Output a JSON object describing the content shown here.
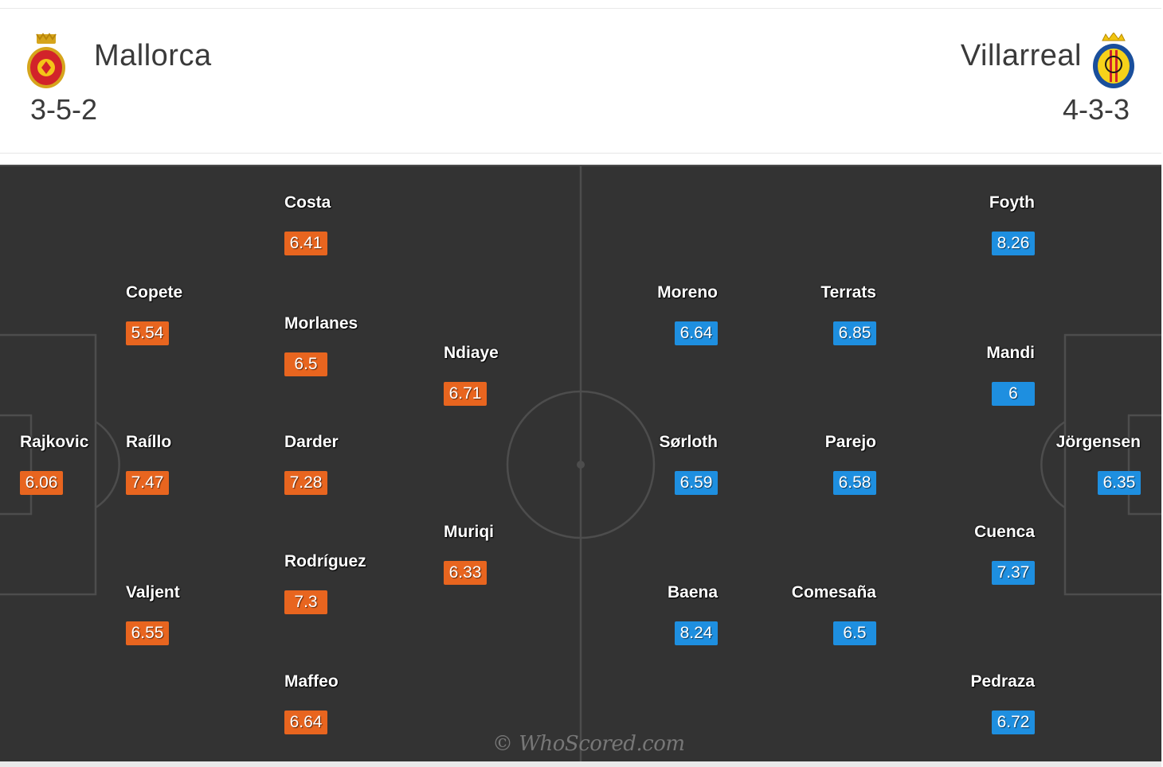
{
  "home": {
    "name": "Mallorca",
    "formation": "3-5-2",
    "badge_color": "#e8651f",
    "crest_icon": "mallorca-crest-icon",
    "players": [
      {
        "name": "Costa",
        "rating": "6.41"
      },
      {
        "name": "Copete",
        "rating": "5.54"
      },
      {
        "name": "Morlanes",
        "rating": "6.5"
      },
      {
        "name": "Ndiaye",
        "rating": "6.71"
      },
      {
        "name": "Rajkovic",
        "rating": "6.06"
      },
      {
        "name": "Raíllo",
        "rating": "7.47"
      },
      {
        "name": "Darder",
        "rating": "7.28"
      },
      {
        "name": "Muriqi",
        "rating": "6.33"
      },
      {
        "name": "Rodríguez",
        "rating": "7.3"
      },
      {
        "name": "Valjent",
        "rating": "6.55"
      },
      {
        "name": "Maffeo",
        "rating": "6.64"
      }
    ]
  },
  "away": {
    "name": "Villarreal",
    "formation": "4-3-3",
    "badge_color": "#1e8fe0",
    "crest_icon": "villarreal-crest-icon",
    "players": [
      {
        "name": "Foyth",
        "rating": "8.26"
      },
      {
        "name": "Moreno",
        "rating": "6.64"
      },
      {
        "name": "Terrats",
        "rating": "6.85"
      },
      {
        "name": "Mandi",
        "rating": "6"
      },
      {
        "name": "Sørloth",
        "rating": "6.59"
      },
      {
        "name": "Parejo",
        "rating": "6.58"
      },
      {
        "name": "Jörgensen",
        "rating": "6.35"
      },
      {
        "name": "Cuenca",
        "rating": "7.37"
      },
      {
        "name": "Baena",
        "rating": "8.24"
      },
      {
        "name": "Comesaña",
        "rating": "6.5"
      },
      {
        "name": "Pedraza",
        "rating": "6.72"
      }
    ]
  },
  "watermark": "© WhoScored.com"
}
